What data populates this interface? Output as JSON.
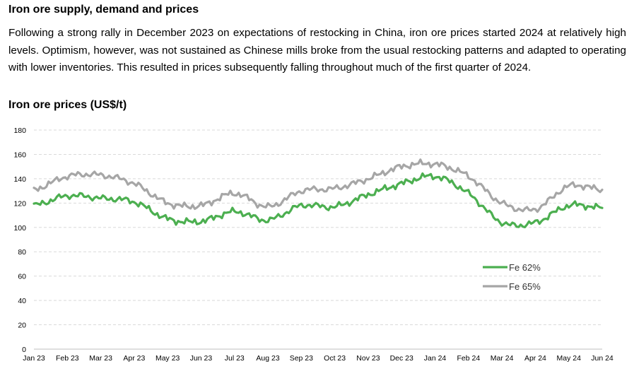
{
  "heading": "Iron ore supply, demand and prices",
  "paragraph": "Following a strong rally in December 2023 on expectations of restocking in China, iron ore prices started 2024 at relatively high levels. Optimism, however, was not sustained as Chinese mills broke from the usual restocking patterns and adapted to operating with lower inventories. This resulted in prices subsequently falling throughout much of the first quarter of 2024.",
  "chart_data": {
    "type": "line",
    "title": "Iron ore prices (US$/t)",
    "ylim": [
      0,
      180
    ],
    "yticks": [
      0,
      20,
      40,
      60,
      80,
      100,
      120,
      140,
      160,
      180
    ],
    "x_tick_labels": [
      "Jan 23",
      "Feb 23",
      "Mar 23",
      "Apr 23",
      "May 23",
      "Jun 23",
      "Jul 23",
      "Aug 23",
      "Sep 23",
      "Oct 23",
      "Nov 23",
      "Dec 23",
      "Jan 24",
      "Feb 24",
      "Mar 24",
      "Apr 24",
      "May 24",
      "Jun 24"
    ],
    "grid": "horizontal dashed",
    "legend_position": "lower-right",
    "colors": {
      "fe62": "#4caf50",
      "fe65": "#a6a6a6"
    },
    "x": [
      "Jan 23",
      "Feb 23",
      "Mar 23",
      "Apr 23",
      "May 23",
      "Jun 23",
      "Jul 23",
      "Aug 23",
      "Sep 23",
      "Oct 23",
      "Nov 23",
      "Dec 23",
      "Jan 24",
      "Feb 24",
      "Mar 24",
      "Apr 24",
      "May 24",
      "Jun 24"
    ],
    "series": [
      {
        "name": "Fe 62%",
        "values": [
          118,
          126,
          124,
          121,
          107,
          105,
          113,
          106,
          118,
          117,
          127,
          136,
          142,
          128,
          104,
          104,
          118,
          116
        ]
      },
      {
        "name": "Fe 65%",
        "values": [
          131,
          142,
          143,
          136,
          120,
          118,
          128,
          117,
          130,
          132,
          140,
          150,
          152,
          142,
          120,
          115,
          134,
          131
        ]
      }
    ]
  }
}
